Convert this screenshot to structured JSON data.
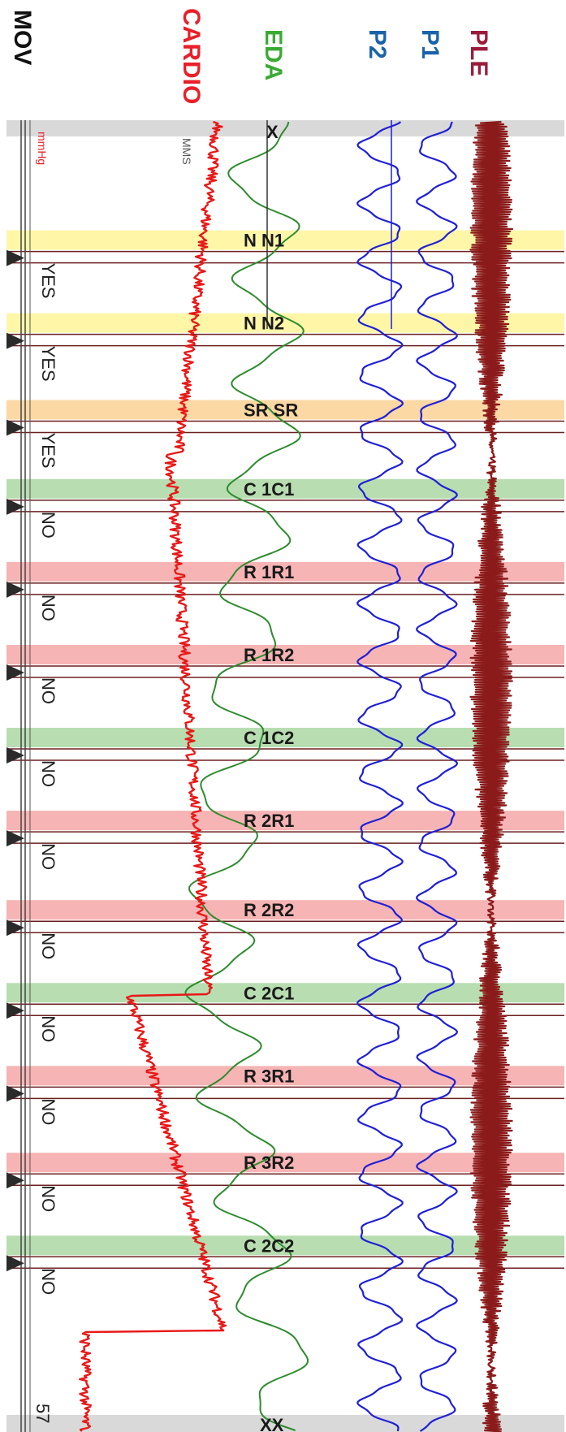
{
  "channels": {
    "mov": {
      "label": "MOV",
      "color": "#111111"
    },
    "cardio": {
      "label": "CARDIO",
      "color": "#e8202a"
    },
    "eda": {
      "label": "EDA",
      "color": "#3aaa35"
    },
    "p2": {
      "label": "P2",
      "color": "#1b63a8"
    },
    "p1": {
      "label": "P1",
      "color": "#1b63a8"
    },
    "ple": {
      "label": "PLE",
      "color": "#9b1b3b"
    }
  },
  "misc": {
    "unit": "mmHg",
    "cardio_tag": "MMS",
    "start_marker": "X",
    "end_marker": "XX",
    "bottom_value": "57"
  },
  "chart_data": {
    "type": "line",
    "title": "",
    "orientation": "vertical-time-axis",
    "series": [
      {
        "name": "PLE",
        "color": "#8b1a1a"
      },
      {
        "name": "P1",
        "color": "#1f1fd6"
      },
      {
        "name": "P2",
        "color": "#1f1fd6"
      },
      {
        "name": "EDA",
        "color": "#2e8b2e"
      },
      {
        "name": "CARDIO",
        "color": "#e81818"
      },
      {
        "name": "MOV",
        "color": "#555555"
      }
    ],
    "questions": [
      {
        "label": "N N1",
        "answer": "YES",
        "band": "#fff6a8",
        "t": 0.085
      },
      {
        "label": "N N2",
        "answer": "YES",
        "band": "#fff6a8",
        "t": 0.149
      },
      {
        "label": "SR SR",
        "answer": "YES",
        "band": "#fbd8a4",
        "t": 0.216
      },
      {
        "label": "C 1C1",
        "answer": "NO",
        "band": "#b7ddb0",
        "t": 0.277
      },
      {
        "label": "R 1R1",
        "answer": "NO",
        "band": "#f6b4b4",
        "t": 0.341
      },
      {
        "label": "R 1R2",
        "answer": "NO",
        "band": "#f6b4b4",
        "t": 0.405
      },
      {
        "label": "C 1C2",
        "answer": "NO",
        "band": "#b7ddb0",
        "t": 0.469
      },
      {
        "label": "R 2R1",
        "answer": "NO",
        "band": "#f6b4b4",
        "t": 0.533
      },
      {
        "label": "R 2R2",
        "answer": "NO",
        "band": "#f6b4b4",
        "t": 0.602
      },
      {
        "label": "C 2C1",
        "answer": "NO",
        "band": "#b7ddb0",
        "t": 0.666
      },
      {
        "label": "R 3R1",
        "answer": "NO",
        "band": "#f6b4b4",
        "t": 0.73
      },
      {
        "label": "R 3R2",
        "answer": "NO",
        "band": "#f6b4b4",
        "t": 0.797
      },
      {
        "label": "C 2C2",
        "answer": "NO",
        "band": "#b7ddb0",
        "t": 0.861
      }
    ]
  }
}
